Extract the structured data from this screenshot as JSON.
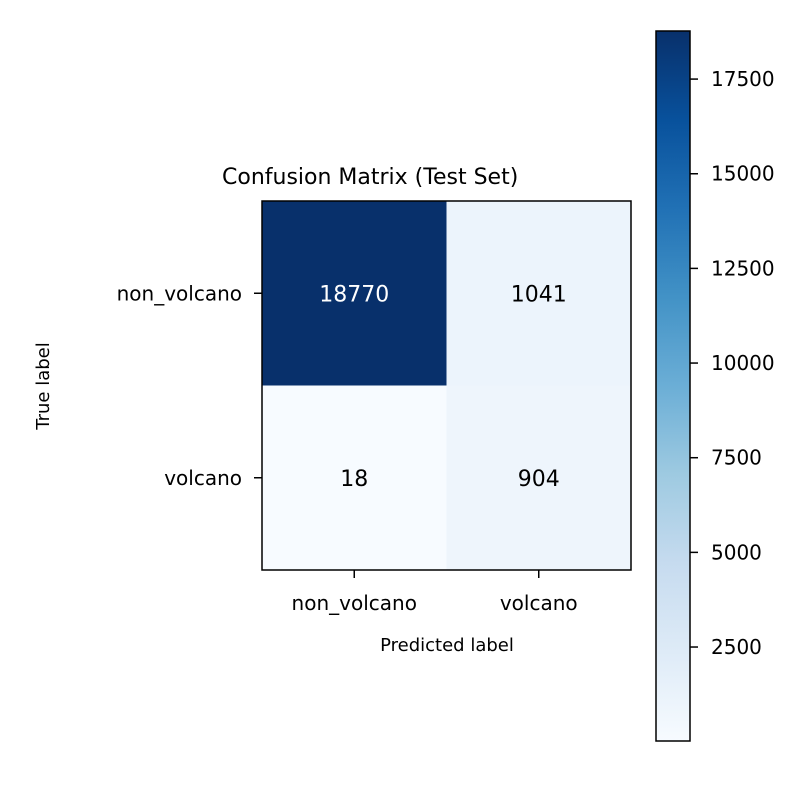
{
  "chart_data": {
    "type": "heatmap",
    "title": "Confusion Matrix (Test Set)",
    "xlabel": "Predicted label",
    "ylabel": "True label",
    "x_categories": [
      "non_volcano",
      "volcano"
    ],
    "y_categories": [
      "non_volcano",
      "volcano"
    ],
    "values": [
      [
        18770,
        1041
      ],
      [
        18,
        904
      ]
    ],
    "colormap": "Blues",
    "vmin": 18,
    "vmax": 18770,
    "colorbar": {
      "ticks": [
        2500,
        5000,
        7500,
        10000,
        12500,
        15000,
        17500
      ],
      "tick_labels": [
        "2500",
        "5000",
        "7500",
        "10000",
        "12500",
        "15000",
        "17500"
      ],
      "placement": "right"
    },
    "colors": {
      "low": "#f7fbff",
      "high": "#08306b",
      "text_dark": "#000000",
      "text_light": "#ffffff"
    }
  }
}
